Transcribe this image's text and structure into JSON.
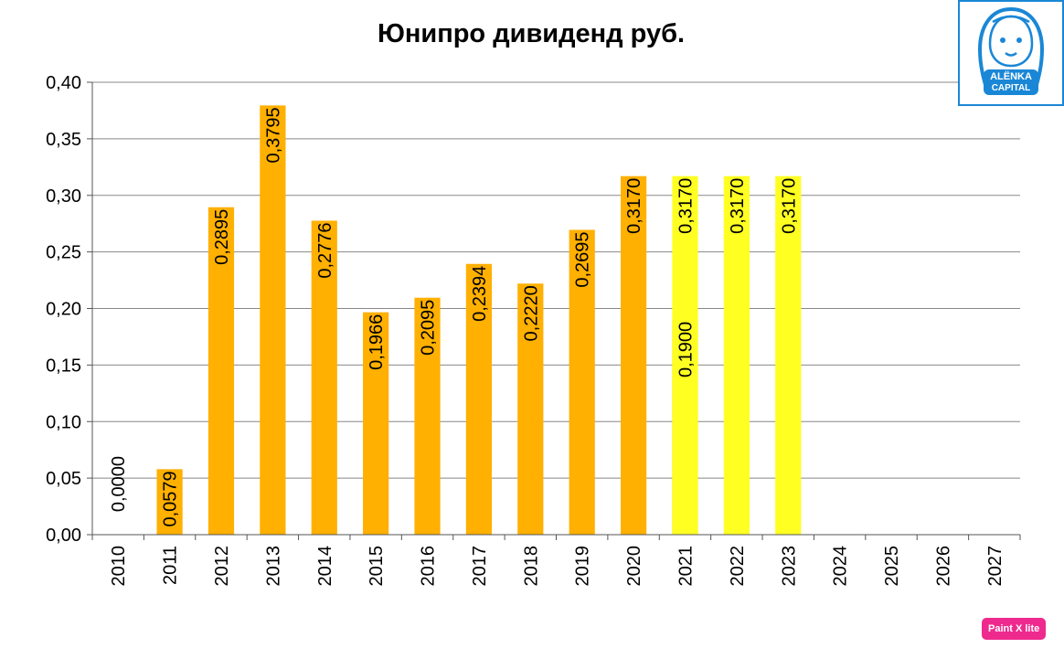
{
  "chart_data": {
    "type": "bar",
    "title": "Юнипро дивиденд руб.",
    "categories": [
      "2010",
      "2011",
      "2012",
      "2013",
      "2014",
      "2015",
      "2016",
      "2017",
      "2018",
      "2019",
      "2020",
      "2021",
      "2022",
      "2023",
      "2024",
      "2025",
      "2026",
      "2027"
    ],
    "series": [
      {
        "color": "#ffb000",
        "values": [
          0.0,
          0.0579,
          0.2895,
          0.3795,
          0.2776,
          0.1966,
          0.2095,
          0.2394,
          0.222,
          0.2695,
          0.317,
          0.19,
          null,
          null,
          null,
          null,
          null,
          null
        ]
      },
      {
        "color": "#ffff22",
        "values": [
          null,
          null,
          null,
          null,
          null,
          null,
          null,
          null,
          null,
          null,
          null,
          0.317,
          0.317,
          0.317,
          null,
          null,
          null,
          null
        ]
      }
    ],
    "data_labels": [
      "0,0000",
      "0,0579",
      "0,2895",
      "0,3795",
      "0,2776",
      "0,1966",
      "0,2095",
      "0,2394",
      "0,2220",
      "0,2695",
      "0,3170",
      "0,1900|0,3170",
      "0,3170",
      "0,3170",
      "",
      "",
      "",
      ""
    ],
    "ylim": [
      0,
      0.4
    ],
    "yticks": [
      0.0,
      0.05,
      0.1,
      0.15,
      0.2,
      0.25,
      0.3,
      0.35,
      0.4
    ],
    "ytick_labels": [
      "0,00",
      "0,05",
      "0,10",
      "0,15",
      "0,20",
      "0,25",
      "0,30",
      "0,35",
      "0,40"
    ],
    "grid": true,
    "legend": "none"
  },
  "logo": {
    "line1": "ALЁNKA",
    "line2": "CAPITAL",
    "color": "#1a87d6"
  },
  "badge": {
    "label": "Paint X lite"
  }
}
